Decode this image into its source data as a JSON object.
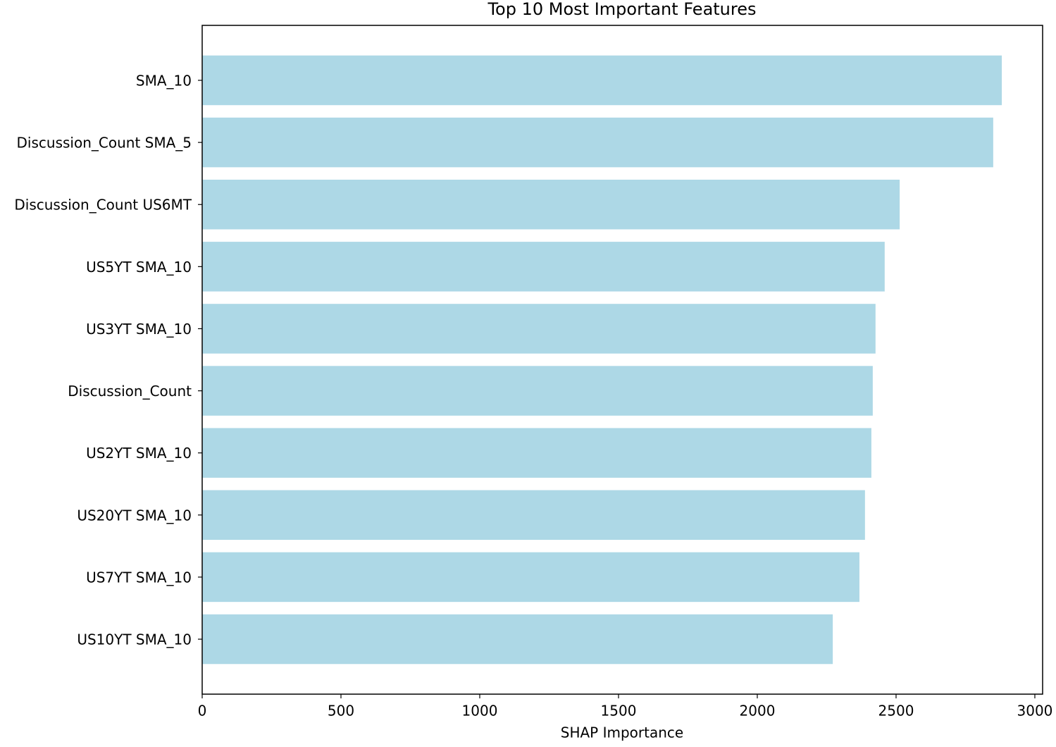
{
  "chart_data": {
    "type": "barh",
    "title": "Top 10 Most Important Features",
    "xlabel": "SHAP Importance",
    "categories": [
      "SMA_10",
      "Discussion_Count SMA_5",
      "Discussion_Count US6MT",
      "US5YT SMA_10",
      "US3YT SMA_10",
      "Discussion_Count",
      "US2YT SMA_10",
      "US20YT SMA_10",
      "US7YT SMA_10",
      "US10YT SMA_10"
    ],
    "values": [
      2881,
      2850,
      2513,
      2459,
      2426,
      2416,
      2411,
      2388,
      2368,
      2272
    ],
    "color": "#add8e6",
    "xlim": [
      0,
      3028
    ],
    "xticks": [
      0,
      500,
      1000,
      1500,
      2000,
      2500,
      3000
    ],
    "grid": false
  }
}
